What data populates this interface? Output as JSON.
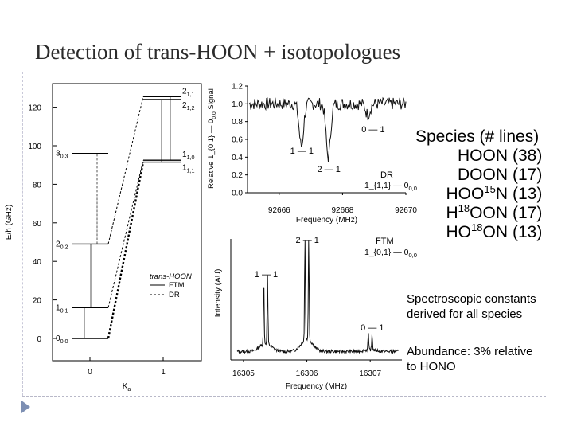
{
  "slide": {
    "title": "Detection of trans-HOON + isotopologues",
    "species_header": "Species  (#  lines)",
    "species": [
      {
        "name": "HOON",
        "lines": "(38)"
      },
      {
        "name": "DOON",
        "lines": "(17)"
      },
      {
        "name_pre": "HOO",
        "name_sup": "15",
        "name_post": "N",
        "lines": "(13)"
      },
      {
        "name_pre": "H",
        "name_sup": "18",
        "name_post": "OON",
        "lines": "(17)"
      },
      {
        "name_pre": "HO",
        "name_sup": "18",
        "name_post": "ON",
        "lines": "(13)"
      }
    ],
    "note1_line1": "Spectroscopic  constants",
    "note1_line2": "derived  for  all  species",
    "note2_line1": "Abundance:  3%  relative",
    "note2_line2": "to  HONO"
  },
  "chart_data": [
    {
      "type": "line",
      "subtype": "energy-level diagram",
      "xlabel": "Ka",
      "ylabel": "E/h (GHz)",
      "x_ticks": [
        "0",
        "1"
      ],
      "y_ticks": [
        0,
        20,
        40,
        60,
        80,
        100,
        120
      ],
      "ylim": [
        -5,
        130
      ],
      "legend_title": "trans-HOON",
      "legend": [
        "FTM",
        "DR"
      ],
      "levels": [
        {
          "label": "0_{0,0}",
          "main": "0",
          "sub": "0,0",
          "ka": 0,
          "e": 0
        },
        {
          "label": "1_{0,1}",
          "main": "1",
          "sub": "0,1",
          "ka": 0,
          "e": 16
        },
        {
          "label": "2_{0,2}",
          "main": "2",
          "sub": "0,2",
          "ka": 0,
          "e": 49
        },
        {
          "label": "3_{0,3}",
          "main": "3",
          "sub": "0,3",
          "ka": 0,
          "e": 96
        },
        {
          "label": "1_{1,1}",
          "main": "1",
          "sub": "1,1",
          "ka": 1,
          "e": 91.5
        },
        {
          "label": "1_{1,0}",
          "main": "1",
          "sub": "1,0",
          "ka": 1,
          "e": 92.5
        },
        {
          "label": "2_{1,2}",
          "main": "2",
          "sub": "1,2",
          "ka": 1,
          "e": 124
        },
        {
          "label": "2_{1,1}",
          "main": "2",
          "sub": "1,1",
          "ka": 1,
          "e": 125.5
        }
      ],
      "transitions": [
        {
          "from": "0_{0,0}",
          "to": "1_{0,1}",
          "type": "FTM"
        },
        {
          "from": "1_{0,1}",
          "to": "2_{0,2}",
          "type": "FTM"
        },
        {
          "from": "2_{0,2}",
          "to": "3_{0,3}",
          "type": "DR"
        },
        {
          "from": "0_{0,0}",
          "to": "1_{1,1}",
          "type": "DR"
        },
        {
          "from": "1_{0,1}",
          "to": "1_{1,0}",
          "type": "DR"
        },
        {
          "from": "2_{0,2}",
          "to": "2_{1,1}",
          "type": "DR"
        },
        {
          "from": "1_{1,1}",
          "to": "2_{1,2}",
          "type": "FTM"
        },
        {
          "from": "1_{1,0}",
          "to": "2_{1,1}",
          "type": "FTM"
        }
      ]
    },
    {
      "type": "line",
      "subtype": "DR spectrum",
      "title": "DR",
      "transition_label": "1_{1,1} — 0_{0,0}",
      "xlabel": "Frequency (MHz)",
      "ylabel": "Relative 1_{0,1} — 0_{0,0} Signal",
      "x_ticks": [
        "92666",
        "92668",
        "92670"
      ],
      "xlim": [
        92665,
        92670
      ],
      "y_ticks": [
        "0.0",
        "0.2",
        "0.4",
        "0.6",
        "0.8",
        "1.0",
        "1.2"
      ],
      "ylim": [
        0,
        1.2
      ],
      "peaks": [
        {
          "label": "1 — 1",
          "x": 92666.7,
          "depth": 0.48
        },
        {
          "label": "2 — 1",
          "x": 92667.55,
          "depth": 0.6
        },
        {
          "label": "0 — 1",
          "x": 92668.8,
          "depth": 0.12
        }
      ]
    },
    {
      "type": "line",
      "subtype": "FTM spectrum",
      "title": "FTM",
      "transition_label": "1_{0,1} — 0_{0,0}",
      "xlabel": "Frequency (MHz)",
      "ylabel": "Intensity (AU)",
      "x_ticks": [
        "16305",
        "16306",
        "16307"
      ],
      "xlim": [
        16304.8,
        16307.5
      ],
      "peaks": [
        {
          "label": "1 — 1",
          "x": 16305.35,
          "height": 0.65
        },
        {
          "label": "2 — 1",
          "x": 16306.0,
          "height": 1.0
        },
        {
          "label": "0 — 1",
          "x": 16307.0,
          "height": 0.15
        }
      ]
    }
  ]
}
